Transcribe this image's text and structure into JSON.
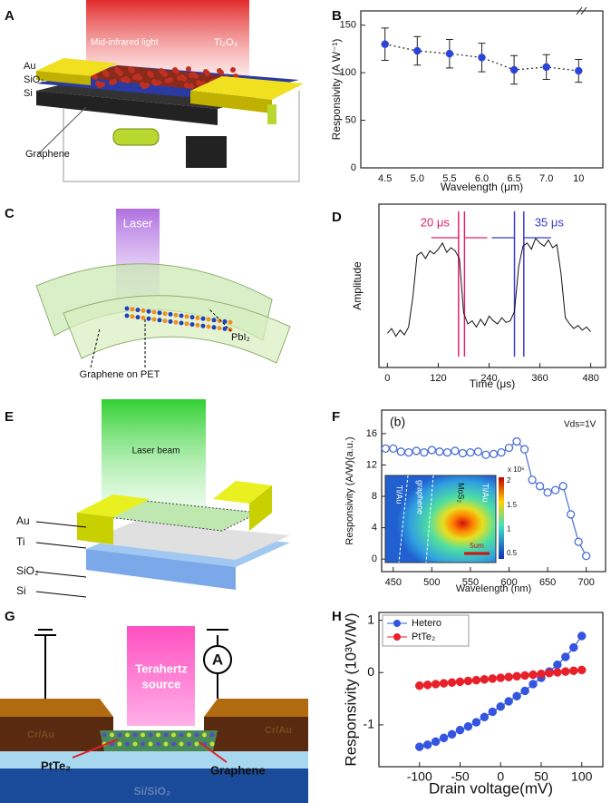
{
  "panel_labels": [
    "A",
    "B",
    "C",
    "D",
    "E",
    "F",
    "G",
    "H"
  ],
  "illustrations": {
    "a": {
      "light": "Mid-infrared light",
      "absorber": "Ti₂O₃",
      "electrode": "Au",
      "oxide": "SiO₂",
      "substrate": "Si",
      "channel": "Graphene"
    },
    "c": {
      "light": "Laser",
      "channel": "Graphene on PET",
      "absorber": "PbI₂"
    },
    "e": {
      "light": "Laser beam",
      "electrode": "Au",
      "adhesion": "Ti",
      "oxide": "SiO₂",
      "substrate": "Si"
    },
    "g": {
      "light": [
        "Terahertz",
        "source"
      ],
      "meter": "A",
      "absorber": "PtTe₂",
      "channel": "Graphene",
      "electrode_left": "Cr/Au",
      "electrode_right": "Cr/Au",
      "substrate": "Si/SiO₂"
    }
  },
  "chart_data": [
    {
      "type": "line",
      "xlabel": "Wavelength (μm)",
      "ylabel": "Responsivity (A W⁻¹)",
      "categories": [
        "4.5",
        "5.0",
        "5.5",
        "6.0",
        "6.5",
        "7.0",
        "10"
      ],
      "series": [
        {
          "color": "#2a45d8",
          "line": "dotted",
          "marker": "filled",
          "values": [
            130,
            123,
            120,
            116,
            103,
            106,
            102
          ],
          "errors": [
            17,
            15,
            15,
            15,
            15,
            13,
            12
          ]
        }
      ],
      "ylim": [
        0,
        165
      ],
      "yticks": [
        0,
        50,
        100,
        150
      ]
    },
    {
      "type": "line",
      "xlabel": "Time (μs)",
      "ylabel": "Amplitude",
      "x": [
        0,
        10,
        20,
        30,
        40,
        50,
        60,
        70,
        80,
        90,
        100,
        110,
        120,
        130,
        140,
        150,
        160,
        170,
        180,
        190,
        200,
        210,
        220,
        230,
        240,
        250,
        260,
        270,
        280,
        290,
        300,
        310,
        320,
        330,
        340,
        350,
        360,
        370,
        380,
        390,
        400,
        410,
        420,
        430,
        440,
        450,
        460,
        470,
        480
      ],
      "series": [
        {
          "color": "#111111",
          "line": "solid",
          "values": [
            0.22,
            0.25,
            0.2,
            0.24,
            0.21,
            0.26,
            0.45,
            0.72,
            0.74,
            0.7,
            0.75,
            0.73,
            0.76,
            0.8,
            0.74,
            0.77,
            0.75,
            0.7,
            0.35,
            0.28,
            0.3,
            0.26,
            0.31,
            0.27,
            0.33,
            0.3,
            0.28,
            0.32,
            0.29,
            0.3,
            0.36,
            0.65,
            0.78,
            0.8,
            0.76,
            0.83,
            0.8,
            0.78,
            0.82,
            0.77,
            0.79,
            0.6,
            0.32,
            0.28,
            0.25,
            0.27,
            0.24,
            0.26,
            0.23
          ]
        }
      ],
      "xlim": [
        -20,
        515
      ],
      "xticks": [
        0,
        120,
        240,
        360,
        480
      ],
      "ylim": [
        0,
        1.05
      ],
      "vlines": [
        {
          "x": 168,
          "color": "#e0206a"
        },
        {
          "x": 182,
          "color": "#e0206a"
        },
        {
          "x": 300,
          "color": "#3a3ad0"
        },
        {
          "x": 322,
          "color": "#3a3ad0"
        }
      ],
      "annotations": [
        {
          "text": "20 μs",
          "color": "#e0206a"
        },
        {
          "text": "35 μs",
          "color": "#3a3ad0"
        }
      ]
    },
    {
      "type": "line",
      "xlabel": "Wavelength (nm)",
      "ylabel": "Responsivity (A/W)(a.u.)",
      "x": [
        440,
        450,
        460,
        470,
        480,
        490,
        500,
        510,
        520,
        530,
        540,
        550,
        560,
        570,
        580,
        590,
        600,
        610,
        620,
        630,
        640,
        650,
        660,
        670,
        680,
        690,
        700
      ],
      "series": [
        {
          "color": "#4a6fd6",
          "line": "solid",
          "marker": "open",
          "values": [
            14.1,
            14.1,
            13.7,
            13.6,
            13.8,
            13.6,
            13.9,
            13.7,
            13.6,
            13.8,
            13.5,
            13.6,
            13.7,
            13.3,
            13.4,
            13.6,
            14.2,
            15.0,
            14.0,
            10.1,
            9.3,
            8.5,
            8.8,
            9.3,
            5.7,
            2.2,
            0.4
          ]
        }
      ],
      "xlim": [
        435,
        725
      ],
      "xticks": [
        450,
        500,
        550,
        600,
        650,
        700
      ],
      "ylim": [
        -1.6,
        19
      ],
      "yticks": [
        0,
        4,
        8,
        12,
        16
      ],
      "annotations": [
        {
          "text": "(b)",
          "color": "#111111"
        },
        {
          "text": "Vds=1V",
          "color": "#111111"
        }
      ],
      "inset": {
        "labels": [
          "Ti/Au",
          "graphene",
          "MoS₂",
          "Ti/Au"
        ],
        "scale_bar": "5um",
        "colorbar_ticks": [
          2,
          1.5,
          1,
          0.5
        ],
        "colorbar_unit": "x 10⁶"
      }
    },
    {
      "type": "line",
      "xlabel": "Drain voltage(mV)",
      "ylabel": "Responsivity (10³V/W)",
      "x": [
        -100,
        -90,
        -80,
        -70,
        -60,
        -50,
        -40,
        -30,
        -20,
        -10,
        0,
        10,
        20,
        30,
        40,
        50,
        60,
        70,
        80,
        90,
        100
      ],
      "series": [
        {
          "name": "Hetero",
          "color": "#3355e0",
          "line": "solid",
          "marker": "filled",
          "values": [
            -1.42,
            -1.38,
            -1.32,
            -1.25,
            -1.18,
            -1.1,
            -1.03,
            -0.95,
            -0.85,
            -0.75,
            -0.65,
            -0.55,
            -0.45,
            -0.35,
            -0.22,
            -0.1,
            0.02,
            0.15,
            0.3,
            0.48,
            0.7
          ]
        },
        {
          "name": "PtTe₂",
          "color": "#e8202a",
          "line": "solid",
          "marker": "filled",
          "values": [
            -0.25,
            -0.235,
            -0.22,
            -0.205,
            -0.19,
            -0.175,
            -0.16,
            -0.145,
            -0.13,
            -0.115,
            -0.1,
            -0.085,
            -0.07,
            -0.055,
            -0.04,
            -0.025,
            -0.01,
            0.005,
            0.02,
            0.035,
            0.05
          ]
        }
      ],
      "xlim": [
        -150,
        126
      ],
      "xticks": [
        -100,
        -50,
        0,
        50,
        100
      ],
      "ylim": [
        -1.8,
        1.15
      ],
      "yticks": [
        -1,
        0,
        1
      ],
      "legend": "upper left"
    }
  ]
}
